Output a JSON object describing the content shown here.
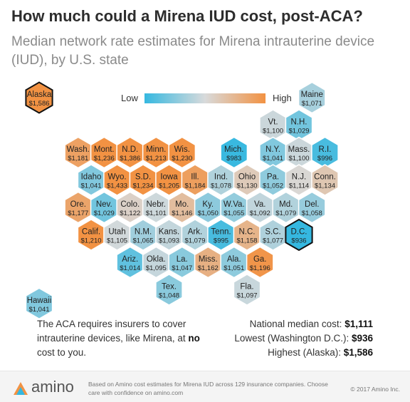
{
  "title": "How much could a Mirena IUD cost, post-ACA?",
  "subtitle": "Median network rate estimates for Mirena intrauterine device (IUD), by U.S. state",
  "legend": {
    "low": "Low",
    "high": "High"
  },
  "colors": {
    "low": "#35b8e0",
    "mid": "#d8dadb",
    "high": "#f29243"
  },
  "chart_data": {
    "type": "hex-tile-map",
    "value_unit": "USD",
    "tiles": [
      {
        "abbr": "Alaska",
        "cost": "$1,586",
        "value": 1586,
        "col": 0,
        "row": 0,
        "highlight": true
      },
      {
        "abbr": "Maine",
        "cost": "$1,071",
        "value": 1071,
        "col": 10.5,
        "row": 0
      },
      {
        "abbr": "Vt.",
        "cost": "$1,100",
        "value": 1100,
        "col": 9,
        "row": 1
      },
      {
        "abbr": "N.H.",
        "cost": "$1,029",
        "value": 1029,
        "col": 10,
        "row": 1
      },
      {
        "abbr": "Wash.",
        "cost": "$1,181",
        "value": 1181,
        "col": 1.5,
        "row": 2
      },
      {
        "abbr": "Mont.",
        "cost": "$1,236",
        "value": 1236,
        "col": 2.5,
        "row": 2
      },
      {
        "abbr": "N.D.",
        "cost": "$1,386",
        "value": 1386,
        "col": 3.5,
        "row": 2
      },
      {
        "abbr": "Minn.",
        "cost": "$1,213",
        "value": 1213,
        "col": 4.5,
        "row": 2
      },
      {
        "abbr": "Wis.",
        "cost": "$1,230",
        "value": 1230,
        "col": 5.5,
        "row": 2
      },
      {
        "abbr": "Mich.",
        "cost": "$983",
        "value": 983,
        "col": 7.5,
        "row": 2
      },
      {
        "abbr": "N.Y.",
        "cost": "$1,041",
        "value": 1041,
        "col": 9,
        "row": 2
      },
      {
        "abbr": "Mass.",
        "cost": "$1,100",
        "value": 1100,
        "col": 10,
        "row": 2
      },
      {
        "abbr": "R.I.",
        "cost": "$996",
        "value": 996,
        "col": 11,
        "row": 2
      },
      {
        "abbr": "Idaho",
        "cost": "$1,041",
        "value": 1041,
        "col": 2,
        "row": 3
      },
      {
        "abbr": "Wyo.",
        "cost": "$1,433",
        "value": 1433,
        "col": 3,
        "row": 3
      },
      {
        "abbr": "S.D.",
        "cost": "$1,234",
        "value": 1234,
        "col": 4,
        "row": 3
      },
      {
        "abbr": "Iowa",
        "cost": "$1,205",
        "value": 1205,
        "col": 5,
        "row": 3
      },
      {
        "abbr": "Ill.",
        "cost": "$1,184",
        "value": 1184,
        "col": 6,
        "row": 3
      },
      {
        "abbr": "Ind.",
        "cost": "$1,078",
        "value": 1078,
        "col": 7,
        "row": 3
      },
      {
        "abbr": "Ohio",
        "cost": "$1,130",
        "value": 1130,
        "col": 8,
        "row": 3
      },
      {
        "abbr": "Pa.",
        "cost": "$1,052",
        "value": 1052,
        "col": 9,
        "row": 3
      },
      {
        "abbr": "N.J.",
        "cost": "$1,114",
        "value": 1114,
        "col": 10,
        "row": 3
      },
      {
        "abbr": "Conn.",
        "cost": "$1,134",
        "value": 1134,
        "col": 11,
        "row": 3
      },
      {
        "abbr": "Ore.",
        "cost": "$1,177",
        "value": 1177,
        "col": 1.5,
        "row": 4
      },
      {
        "abbr": "Nev.",
        "cost": "$1,029",
        "value": 1029,
        "col": 2.5,
        "row": 4
      },
      {
        "abbr": "Colo.",
        "cost": "$1,122",
        "value": 1122,
        "col": 3.5,
        "row": 4
      },
      {
        "abbr": "Nebr.",
        "cost": "$1,101",
        "value": 1101,
        "col": 4.5,
        "row": 4
      },
      {
        "abbr": "Mo.",
        "cost": "$1,146",
        "value": 1146,
        "col": 5.5,
        "row": 4
      },
      {
        "abbr": "Ky.",
        "cost": "$1,050",
        "value": 1050,
        "col": 6.5,
        "row": 4
      },
      {
        "abbr": "W.Va.",
        "cost": "$1,055",
        "value": 1055,
        "col": 7.5,
        "row": 4
      },
      {
        "abbr": "Va.",
        "cost": "$1,092",
        "value": 1092,
        "col": 8.5,
        "row": 4
      },
      {
        "abbr": "Md.",
        "cost": "$1,079",
        "value": 1079,
        "col": 9.5,
        "row": 4
      },
      {
        "abbr": "Del.",
        "cost": "$1,058",
        "value": 1058,
        "col": 10.5,
        "row": 4
      },
      {
        "abbr": "Calif.",
        "cost": "$1,210",
        "value": 1210,
        "col": 2,
        "row": 5
      },
      {
        "abbr": "Utah",
        "cost": "$1,105",
        "value": 1105,
        "col": 3,
        "row": 5
      },
      {
        "abbr": "N.M.",
        "cost": "$1,065",
        "value": 1065,
        "col": 4,
        "row": 5
      },
      {
        "abbr": "Kans.",
        "cost": "$1,093",
        "value": 1093,
        "col": 5,
        "row": 5
      },
      {
        "abbr": "Ark.",
        "cost": "$1,079",
        "value": 1079,
        "col": 6,
        "row": 5
      },
      {
        "abbr": "Tenn.",
        "cost": "$995",
        "value": 995,
        "col": 7,
        "row": 5
      },
      {
        "abbr": "N.C.",
        "cost": "$1,158",
        "value": 1158,
        "col": 8,
        "row": 5
      },
      {
        "abbr": "S.C.",
        "cost": "$1,077",
        "value": 1077,
        "col": 9,
        "row": 5
      },
      {
        "abbr": "D.C.",
        "cost": "$936",
        "value": 936,
        "col": 10,
        "row": 5,
        "highlight": true
      },
      {
        "abbr": "Ariz.",
        "cost": "$1,014",
        "value": 1014,
        "col": 3.5,
        "row": 6
      },
      {
        "abbr": "Okla.",
        "cost": "$1,095",
        "value": 1095,
        "col": 4.5,
        "row": 6
      },
      {
        "abbr": "La.",
        "cost": "$1,047",
        "value": 1047,
        "col": 5.5,
        "row": 6
      },
      {
        "abbr": "Miss.",
        "cost": "$1,162",
        "value": 1162,
        "col": 6.5,
        "row": 6
      },
      {
        "abbr": "Ala.",
        "cost": "$1,051",
        "value": 1051,
        "col": 7.5,
        "row": 6
      },
      {
        "abbr": "Ga.",
        "cost": "$1,196",
        "value": 1196,
        "col": 8.5,
        "row": 6
      },
      {
        "abbr": "Tex.",
        "cost": "$1,048",
        "value": 1048,
        "col": 5,
        "row": 7
      },
      {
        "abbr": "Fla.",
        "cost": "$1,097",
        "value": 1097,
        "col": 8,
        "row": 7
      },
      {
        "abbr": "Hawaii",
        "cost": "$1,041",
        "value": 1041,
        "col": 0,
        "row": 7.5
      }
    ]
  },
  "note": {
    "pre": "The ACA requires insurers to cover intrauterine devices, like Mirena, at ",
    "bold": "no",
    "post": " cost to you."
  },
  "stats": {
    "median_label": "National median cost: ",
    "median_value": "$1,111",
    "lowest_label": "Lowest (Washington D.C.): ",
    "lowest_value": "$936",
    "highest_label": "Highest (Alaska): ",
    "highest_value": "$1,586"
  },
  "footer": {
    "logo": "amino",
    "source": "Based on Amino cost estimates for Mirena IUD across 129 insurance companies. Choose care with confidence on amino.com",
    "copyright": "© 2017 Amino Inc."
  }
}
